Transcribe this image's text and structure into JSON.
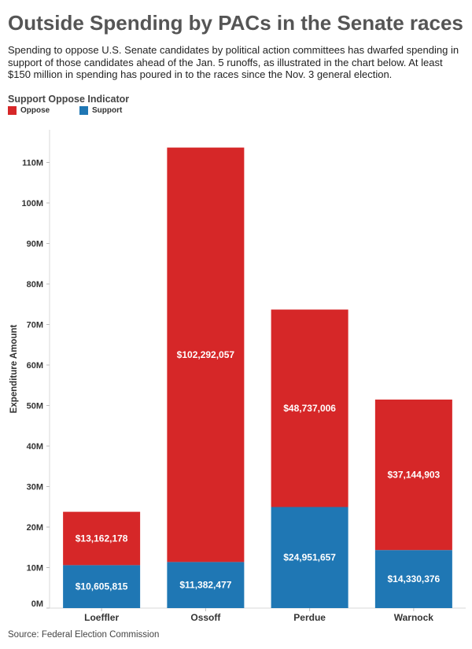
{
  "title": "Outside Spending by PACs in the Senate races",
  "subtitle": "Spending to oppose U.S. Senate candidates by political action committees has dwarfed spending in support of those candidates ahead of the Jan. 5 runoffs, as illustrated in the chart below. At least $150 million in spending has poured in to the races since the Nov. 3 general election.",
  "legend": {
    "title": "Support Oppose Indicator",
    "items": [
      {
        "label": "Oppose",
        "color": "#d62728"
      },
      {
        "label": "Support",
        "color": "#1f77b4"
      }
    ]
  },
  "source": "Source: Federal Election Commission",
  "chart_data": {
    "type": "bar",
    "stacked": true,
    "categories": [
      "Loeffler",
      "Ossoff",
      "Perdue",
      "Warnock"
    ],
    "series": [
      {
        "name": "Support",
        "color": "#1f77b4",
        "values": [
          10605815,
          11382477,
          24951657,
          14330376
        ],
        "labels": [
          "$10,605,815",
          "$11,382,477",
          "$24,951,657",
          "$14,330,376"
        ]
      },
      {
        "name": "Oppose",
        "color": "#d62728",
        "values": [
          13162178,
          102292057,
          48737006,
          37144903
        ],
        "labels": [
          "$13,162,178",
          "$102,292,057",
          "$48,737,006",
          "$37,144,903"
        ]
      }
    ],
    "ylabel": "Expenditure Amount",
    "xlabel": "",
    "ylim": [
      0,
      115000000
    ],
    "yticks": [
      {
        "value": 0,
        "label": "0M"
      },
      {
        "value": 10000000,
        "label": "10M"
      },
      {
        "value": 20000000,
        "label": "20M"
      },
      {
        "value": 30000000,
        "label": "30M"
      },
      {
        "value": 40000000,
        "label": "40M"
      },
      {
        "value": 50000000,
        "label": "50M"
      },
      {
        "value": 60000000,
        "label": "60M"
      },
      {
        "value": 70000000,
        "label": "70M"
      },
      {
        "value": 80000000,
        "label": "80M"
      },
      {
        "value": 90000000,
        "label": "90M"
      },
      {
        "value": 100000000,
        "label": "100M"
      },
      {
        "value": 110000000,
        "label": "110M"
      }
    ],
    "grid": false,
    "legend_position": "top-left"
  }
}
